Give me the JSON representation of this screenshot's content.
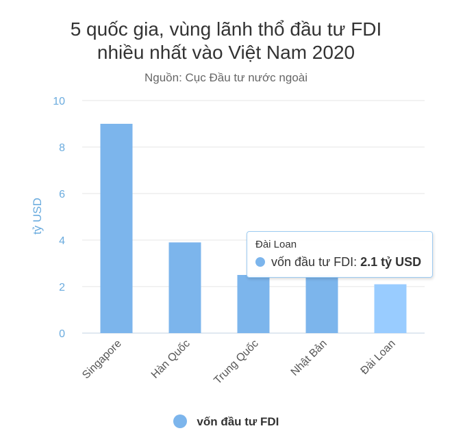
{
  "chart_data": {
    "type": "bar",
    "title": [
      "5 quốc gia, vùng lãnh thổ đầu tư FDI",
      "nhiều nhất vào Việt Nam 2020"
    ],
    "subtitle": "Nguồn: Cục Đầu tư nước ngoài",
    "xlabel": "",
    "ylabel": "tỷ USD",
    "ylim": [
      0,
      10
    ],
    "yticks": [
      0,
      2,
      4,
      6,
      8,
      10
    ],
    "categories": [
      "Singapore",
      "Hàn Quốc",
      "Trung Quốc",
      "Nhật Bản",
      "Đài Loan"
    ],
    "series": [
      {
        "name": "vốn đầu tư FDI",
        "values": [
          9.0,
          3.9,
          2.5,
          2.5,
          2.1
        ],
        "color": "#7cb5ec"
      }
    ],
    "highlight_color": "#99ccff",
    "highlight_index": 4,
    "grid": true,
    "legend": "bottom-center"
  },
  "tooltip": {
    "category": "Đài Loan",
    "series_name": "vốn đầu tư FDI:",
    "value": "2.1 tỷ USD"
  }
}
